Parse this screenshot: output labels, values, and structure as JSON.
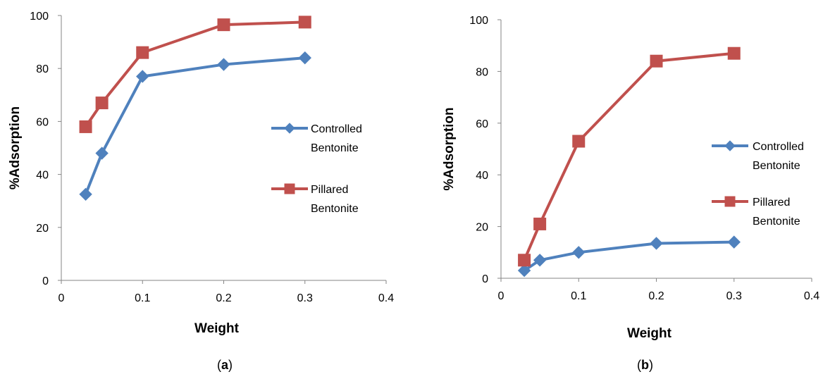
{
  "chart_data": [
    {
      "type": "line",
      "panel_label": "a",
      "xlabel": "Weight",
      "ylabel": "%Adsorption",
      "xlim": [
        0,
        0.4
      ],
      "ylim": [
        0,
        100
      ],
      "xticks": [
        "0",
        "0.1",
        "0.2",
        "0.3",
        "0.4"
      ],
      "yticks": [
        "0",
        "20",
        "40",
        "60",
        "80",
        "100"
      ],
      "grid": false,
      "legend_position": "right",
      "series": [
        {
          "name": "Controlled Bentonite",
          "color": "#4f81bd",
          "marker": "diamond",
          "x": [
            0.03,
            0.05,
            0.1,
            0.2,
            0.3
          ],
          "y": [
            32.5,
            48,
            77,
            81.5,
            84
          ]
        },
        {
          "name": "Pillared Bentonite",
          "color": "#c0504d",
          "marker": "square",
          "x": [
            0.03,
            0.05,
            0.1,
            0.2,
            0.3
          ],
          "y": [
            58,
            67,
            86,
            96.5,
            97.5
          ]
        }
      ]
    },
    {
      "type": "line",
      "panel_label": "b",
      "xlabel": "Weight",
      "ylabel": "%Adsorption",
      "xlim": [
        0,
        0.4
      ],
      "ylim": [
        0,
        100
      ],
      "xticks": [
        "0",
        "0.1",
        "0.2",
        "0.3",
        "0.4"
      ],
      "yticks": [
        "0",
        "20",
        "40",
        "60",
        "80",
        "100"
      ],
      "grid": false,
      "legend_position": "right",
      "series": [
        {
          "name": "Controlled Bentonite",
          "color": "#4f81bd",
          "marker": "diamond",
          "x": [
            0.03,
            0.05,
            0.1,
            0.2,
            0.3
          ],
          "y": [
            3,
            7,
            10,
            13.5,
            14
          ]
        },
        {
          "name": "Pillared Bentonite",
          "color": "#c0504d",
          "marker": "square",
          "x": [
            0.03,
            0.05,
            0.1,
            0.2,
            0.3
          ],
          "y": [
            7,
            21,
            53,
            84,
            87
          ]
        }
      ]
    }
  ]
}
